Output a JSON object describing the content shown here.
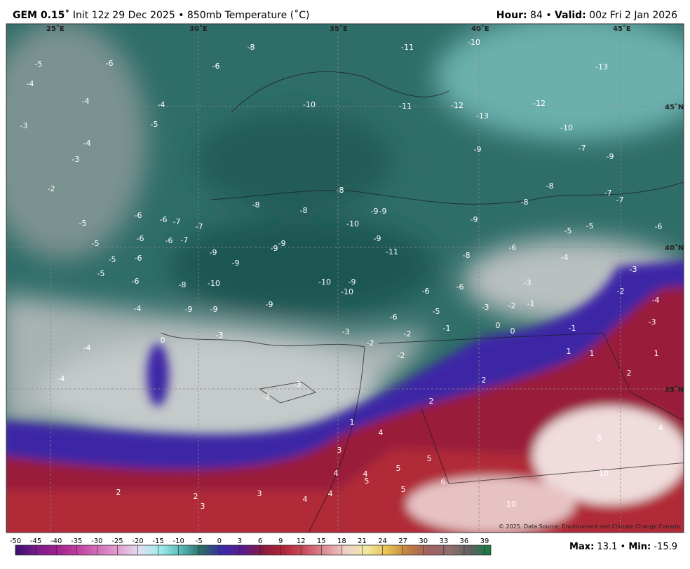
{
  "header": {
    "model": "GEM 0.15˚",
    "title": "Init 12z 29 Dec 2025 • 850mb Temperature (˚C)",
    "hour_label": "Hour:",
    "hour": 84,
    "separator": "•",
    "valid_label": "Valid:",
    "valid": "00z Fri 2 Jan 2026"
  },
  "graticule_labels": [
    "25˚E",
    "30˚E",
    "35˚E",
    "40˚E",
    "45˚E",
    "45˚N",
    "40˚N",
    "35˚N"
  ],
  "contour_labels": [
    -8,
    -11,
    -10,
    -5,
    -6,
    -6,
    -13,
    -4,
    -4,
    -4,
    -10,
    -11,
    -12,
    -12,
    -13,
    -5,
    -3,
    -4,
    -10,
    -3,
    -9,
    -7,
    -9,
    -2,
    -8,
    -8,
    -7,
    -8,
    -8,
    -9,
    -9,
    -8,
    -7,
    -6,
    -6,
    -7,
    -7,
    -5,
    -10,
    -9,
    -5,
    -5,
    -6,
    -5,
    -6,
    -6,
    -7,
    -9,
    -9,
    -9,
    -9,
    -11,
    -6,
    -8,
    -4,
    -5,
    -6,
    -9,
    -3,
    -5,
    -6,
    -8,
    -10,
    -10,
    -9,
    -10,
    -3,
    -6,
    -6,
    -4,
    -2,
    -4,
    -9,
    -9,
    -9,
    -5,
    -3,
    -2,
    -1,
    -6,
    -3,
    -1,
    0,
    0,
    -1,
    -3,
    -3,
    -2,
    0,
    -2,
    -2,
    1,
    1,
    1,
    -4,
    2,
    2,
    -4,
    2,
    -2,
    -3,
    1,
    4,
    4,
    8,
    3,
    5,
    5,
    4,
    4,
    5,
    6,
    5,
    10,
    2,
    2,
    3,
    3,
    4,
    4,
    10
  ],
  "credit": "© 2025. Data Source: Environment and Climate Change Canada.",
  "colorbar": {
    "ticks": [
      -50,
      -45,
      -40,
      -35,
      -30,
      -25,
      -20,
      -15,
      -10,
      -5,
      0,
      3,
      6,
      9,
      12,
      15,
      18,
      21,
      24,
      27,
      30,
      33,
      36,
      39
    ],
    "colors": [
      "#3a1070",
      "#7a1a8a",
      "#a0208f",
      "#c0409f",
      "#d070b8",
      "#e4a0d0",
      "#e0e0f4",
      "#a0eaea",
      "#56bcb8",
      "#2c6a66",
      "#3a2aa8",
      "#5a1a8a",
      "#8a1a40",
      "#b02838",
      "#c85060",
      "#e09098",
      "#f0d0c8",
      "#f0e8a0",
      "#e8c050",
      "#c08040",
      "#a06060",
      "#907070",
      "#606060",
      "#108040"
    ]
  },
  "footer": {
    "max_label": "Max:",
    "max": 13.1,
    "separator": "•",
    "min_label": "Min:",
    "min": -15.9
  }
}
